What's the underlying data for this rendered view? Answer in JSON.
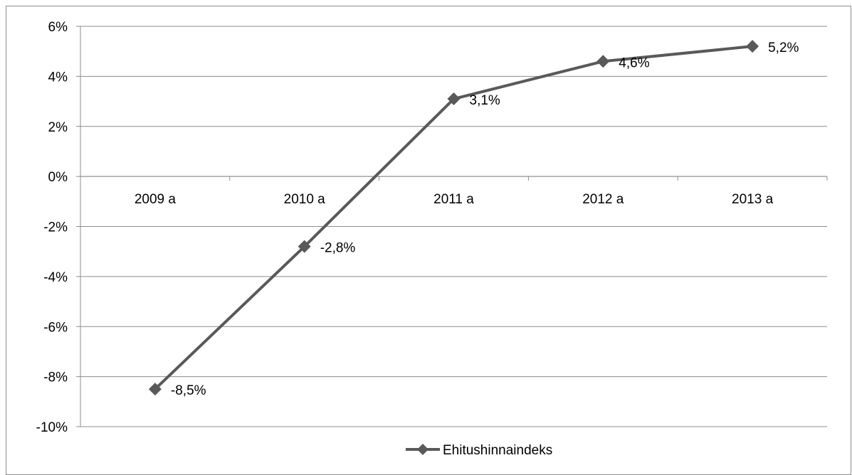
{
  "chart_data": {
    "type": "line",
    "categories": [
      "2009 a",
      "2010 a",
      "2011 a",
      "2012 a",
      "2013 a"
    ],
    "series": [
      {
        "name": "Ehitushinnaindeks",
        "values": [
          -8.5,
          -2.8,
          3.1,
          4.6,
          5.2
        ],
        "labels": [
          "-8,5%",
          "-2,8%",
          "3,1%",
          "4,6%",
          "5,2%"
        ],
        "color": "#595959",
        "marker": "diamond"
      }
    ],
    "y_ticks": [
      {
        "value": 6,
        "label": "6%"
      },
      {
        "value": 4,
        "label": "4%"
      },
      {
        "value": 2,
        "label": "2%"
      },
      {
        "value": 0,
        "label": "0%"
      },
      {
        "value": -2,
        "label": "-2%"
      },
      {
        "value": -4,
        "label": "-4%"
      },
      {
        "value": -6,
        "label": "-6%"
      },
      {
        "value": -8,
        "label": "-8%"
      },
      {
        "value": -10,
        "label": "-10%"
      }
    ],
    "ylim": [
      -10,
      6
    ],
    "grid": true,
    "gridline_color": "#8c8c8c",
    "axis_color": "#8c8c8c",
    "legend_position": "bottom",
    "title": "",
    "xlabel": "",
    "ylabel": ""
  }
}
